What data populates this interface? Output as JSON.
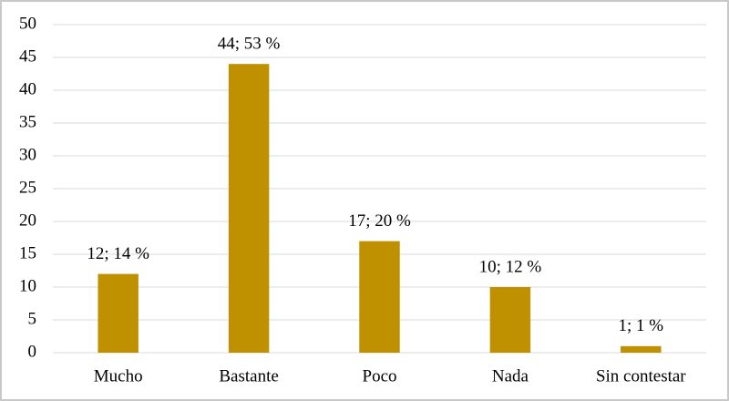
{
  "chart_data": {
    "type": "bar",
    "categories": [
      "Mucho",
      "Bastante",
      "Poco",
      "Nada",
      "Sin contestar"
    ],
    "values": [
      12,
      44,
      17,
      10,
      1
    ],
    "value_labels": [
      "12; 14 %",
      "44; 53 %",
      "17; 20 %",
      "10; 12 %",
      "1; 1 %"
    ],
    "color": "#bf9000",
    "ylim": [
      0,
      50
    ],
    "yticks": [
      0,
      5,
      10,
      15,
      20,
      25,
      30,
      35,
      40,
      45,
      50
    ],
    "grid": true
  }
}
